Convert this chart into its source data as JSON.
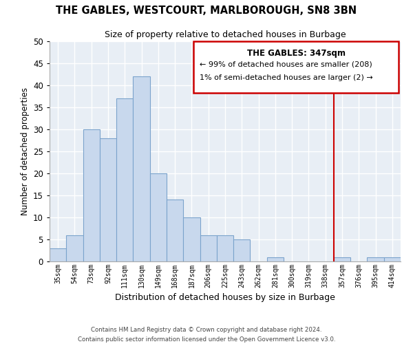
{
  "title": "THE GABLES, WESTCOURT, MARLBOROUGH, SN8 3BN",
  "subtitle": "Size of property relative to detached houses in Burbage",
  "xlabel": "Distribution of detached houses by size in Burbage",
  "ylabel": "Number of detached properties",
  "bar_labels": [
    "35sqm",
    "54sqm",
    "73sqm",
    "92sqm",
    "111sqm",
    "130sqm",
    "149sqm",
    "168sqm",
    "187sqm",
    "206sqm",
    "225sqm",
    "243sqm",
    "262sqm",
    "281sqm",
    "300sqm",
    "319sqm",
    "338sqm",
    "357sqm",
    "376sqm",
    "395sqm",
    "414sqm"
  ],
  "bar_values": [
    3,
    6,
    30,
    28,
    37,
    42,
    20,
    14,
    10,
    6,
    6,
    5,
    0,
    1,
    0,
    0,
    0,
    1,
    0,
    1,
    1
  ],
  "bar_color": "#c8d8ed",
  "bar_edge_color": "#7ba3cc",
  "vline_x": 16.5,
  "vline_color": "#cc0000",
  "ylim": [
    0,
    50
  ],
  "yticks": [
    0,
    5,
    10,
    15,
    20,
    25,
    30,
    35,
    40,
    45,
    50
  ],
  "annotation_title": "THE GABLES: 347sqm",
  "annotation_line1": "← 99% of detached houses are smaller (208)",
  "annotation_line2": "1% of semi-detached houses are larger (2) →",
  "annotation_box_color": "#cc0000",
  "footer_line1": "Contains HM Land Registry data © Crown copyright and database right 2024.",
  "footer_line2": "Contains public sector information licensed under the Open Government Licence v3.0.",
  "background_color": "#ffffff",
  "plot_bg_color": "#e8eef5",
  "grid_color": "#ffffff"
}
